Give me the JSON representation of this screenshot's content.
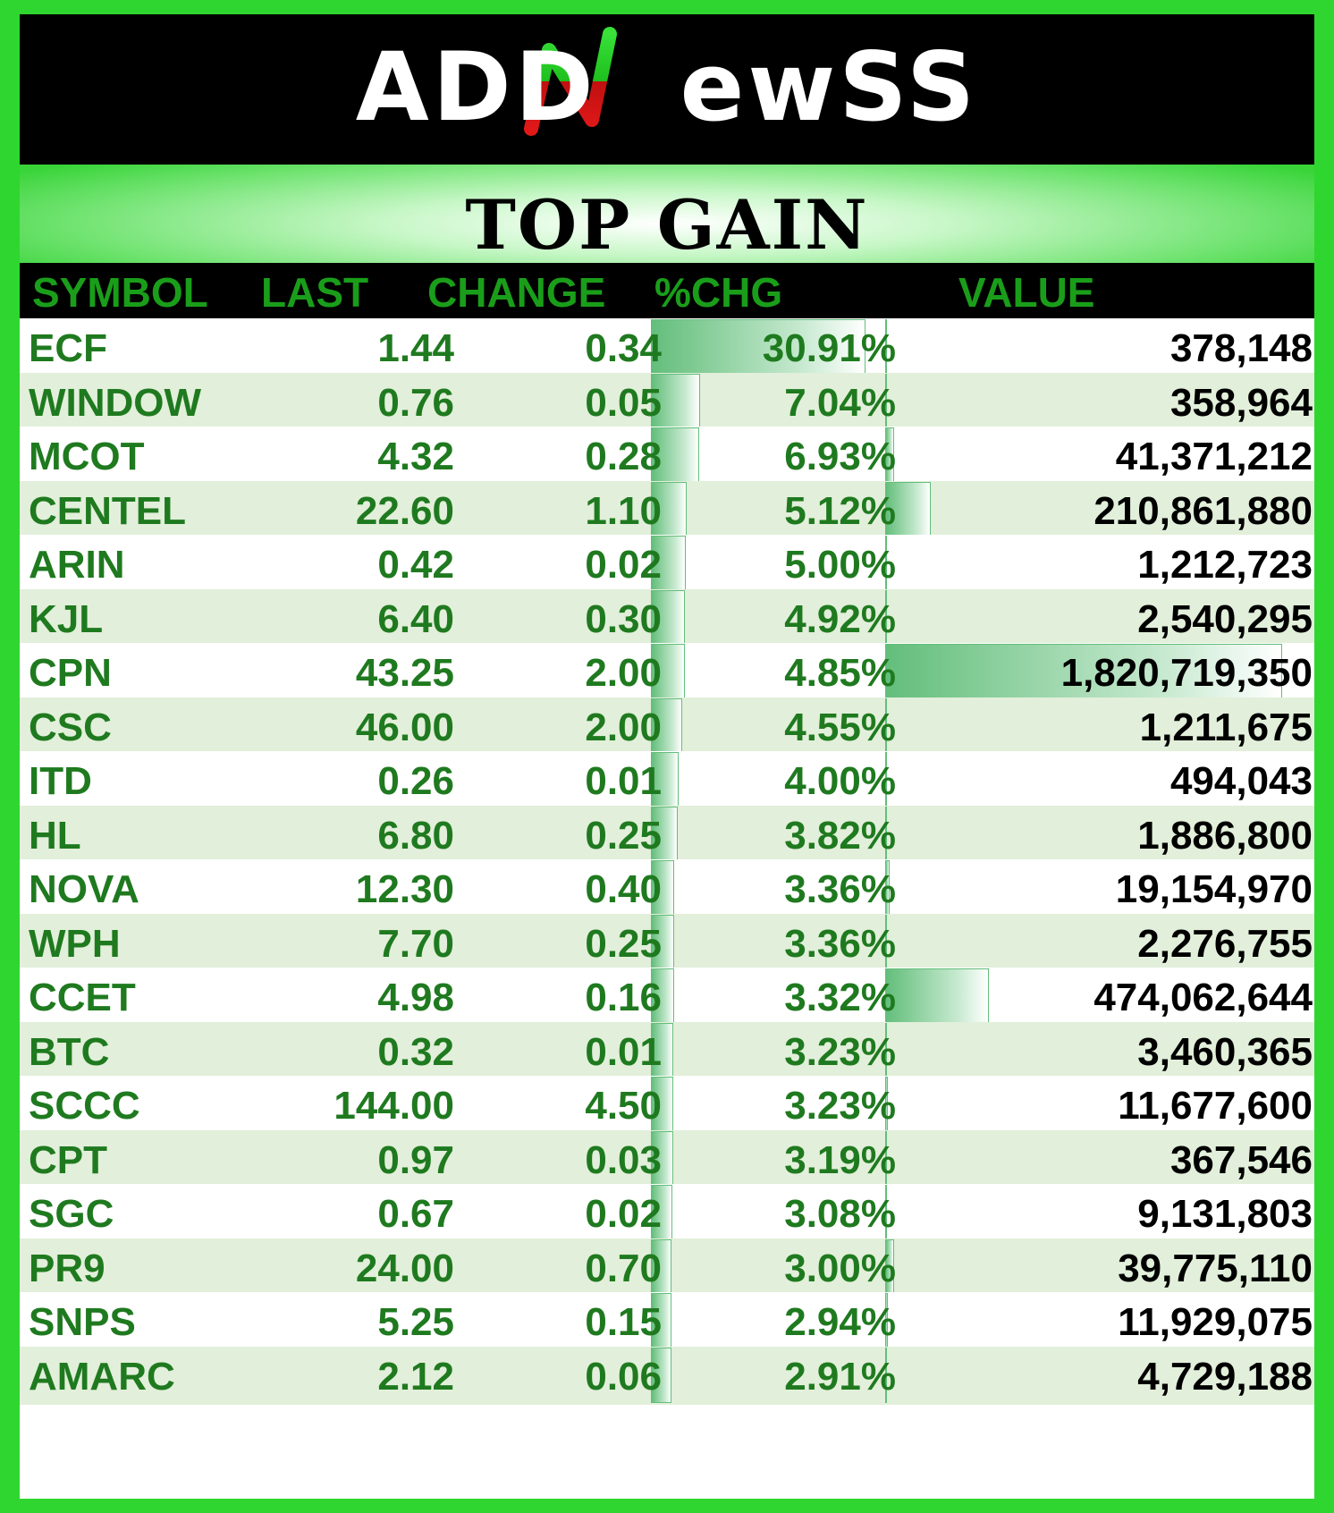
{
  "brand": {
    "logo_text": "ADDNewSS",
    "colors": {
      "frame": "#2fd62f",
      "logo_bg": "#000000",
      "header_text": "#1a9e1a",
      "cell_text": "#1f7a1f",
      "bar": "#63be7b",
      "row_alt": "#e2efda"
    }
  },
  "title": "TOP GAIN",
  "columns": [
    "SYMBOL",
    "LAST",
    "CHANGE",
    "%CHG",
    "VALUE"
  ],
  "rows": [
    {
      "symbol": "ECF",
      "last": "1.44",
      "change": "0.34",
      "pct": "30.91%",
      "value": "378,148",
      "pct_num": 30.91,
      "value_num": 378148
    },
    {
      "symbol": "WINDOW",
      "last": "0.76",
      "change": "0.05",
      "pct": "7.04%",
      "value": "358,964",
      "pct_num": 7.04,
      "value_num": 358964
    },
    {
      "symbol": "MCOT",
      "last": "4.32",
      "change": "0.28",
      "pct": "6.93%",
      "value": "41,371,212",
      "pct_num": 6.93,
      "value_num": 41371212
    },
    {
      "symbol": "CENTEL",
      "last": "22.60",
      "change": "1.10",
      "pct": "5.12%",
      "value": "210,861,880",
      "pct_num": 5.12,
      "value_num": 210861880
    },
    {
      "symbol": "ARIN",
      "last": "0.42",
      "change": "0.02",
      "pct": "5.00%",
      "value": "1,212,723",
      "pct_num": 5.0,
      "value_num": 1212723
    },
    {
      "symbol": "KJL",
      "last": "6.40",
      "change": "0.30",
      "pct": "4.92%",
      "value": "2,540,295",
      "pct_num": 4.92,
      "value_num": 2540295
    },
    {
      "symbol": "CPN",
      "last": "43.25",
      "change": "2.00",
      "pct": "4.85%",
      "value": "1,820,719,350",
      "pct_num": 4.85,
      "value_num": 1820719350
    },
    {
      "symbol": "CSC",
      "last": "46.00",
      "change": "2.00",
      "pct": "4.55%",
      "value": "1,211,675",
      "pct_num": 4.55,
      "value_num": 1211675
    },
    {
      "symbol": "ITD",
      "last": "0.26",
      "change": "0.01",
      "pct": "4.00%",
      "value": "494,043",
      "pct_num": 4.0,
      "value_num": 494043
    },
    {
      "symbol": "HL",
      "last": "6.80",
      "change": "0.25",
      "pct": "3.82%",
      "value": "1,886,800",
      "pct_num": 3.82,
      "value_num": 1886800
    },
    {
      "symbol": "NOVA",
      "last": "12.30",
      "change": "0.40",
      "pct": "3.36%",
      "value": "19,154,970",
      "pct_num": 3.36,
      "value_num": 19154970
    },
    {
      "symbol": "WPH",
      "last": "7.70",
      "change": "0.25",
      "pct": "3.36%",
      "value": "2,276,755",
      "pct_num": 3.36,
      "value_num": 2276755
    },
    {
      "symbol": "CCET",
      "last": "4.98",
      "change": "0.16",
      "pct": "3.32%",
      "value": "474,062,644",
      "pct_num": 3.32,
      "value_num": 474062644
    },
    {
      "symbol": "BTC",
      "last": "0.32",
      "change": "0.01",
      "pct": "3.23%",
      "value": "3,460,365",
      "pct_num": 3.23,
      "value_num": 3460365
    },
    {
      "symbol": "SCCC",
      "last": "144.00",
      "change": "4.50",
      "pct": "3.23%",
      "value": "11,677,600",
      "pct_num": 3.23,
      "value_num": 11677600
    },
    {
      "symbol": "CPT",
      "last": "0.97",
      "change": "0.03",
      "pct": "3.19%",
      "value": "367,546",
      "pct_num": 3.19,
      "value_num": 367546
    },
    {
      "symbol": "SGC",
      "last": "0.67",
      "change": "0.02",
      "pct": "3.08%",
      "value": "9,131,803",
      "pct_num": 3.08,
      "value_num": 9131803
    },
    {
      "symbol": "PR9",
      "last": "24.00",
      "change": "0.70",
      "pct": "3.00%",
      "value": "39,775,110",
      "pct_num": 3.0,
      "value_num": 39775110
    },
    {
      "symbol": "SNPS",
      "last": "5.25",
      "change": "0.15",
      "pct": "2.94%",
      "value": "11,929,075",
      "pct_num": 2.94,
      "value_num": 11929075
    },
    {
      "symbol": "AMARC",
      "last": "2.12",
      "change": "0.06",
      "pct": "2.91%",
      "value": "4,729,188",
      "pct_num": 2.91,
      "value_num": 4729188
    }
  ]
}
